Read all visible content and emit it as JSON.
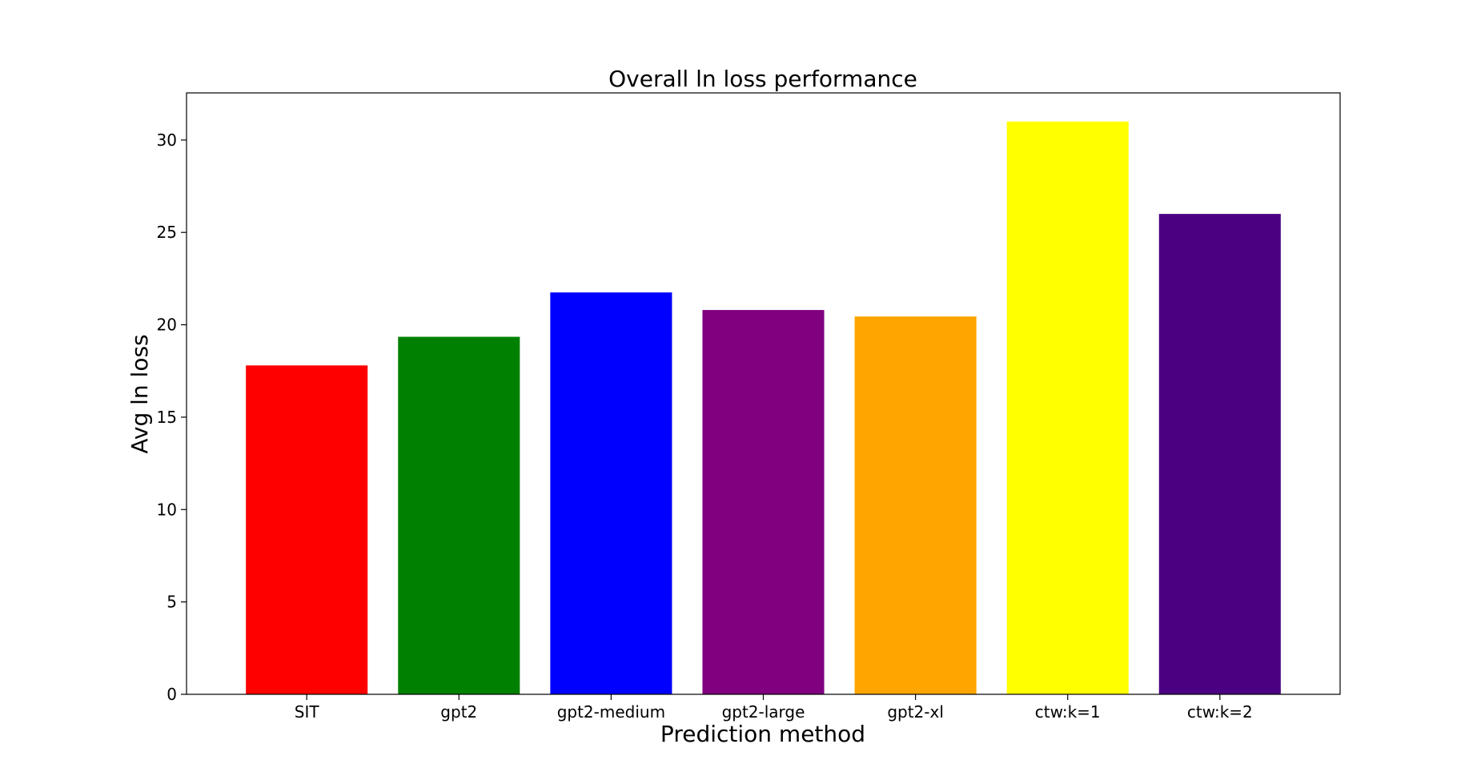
{
  "chart_data": {
    "type": "bar",
    "title": "Overall ln loss performance",
    "xlabel": "Prediction method",
    "ylabel": "Avg ln loss",
    "categories": [
      "SIT",
      "gpt2",
      "gpt2-medium",
      "gpt2-large",
      "gpt2-xl",
      "ctw:k=1",
      "ctw:k=2"
    ],
    "values": [
      17.8,
      19.35,
      21.75,
      20.8,
      20.45,
      31.0,
      26.0
    ],
    "colors": [
      "#ff0000",
      "#008000",
      "#0000ff",
      "#800080",
      "#ffa500",
      "#ffff00",
      "#4b0082"
    ],
    "ylim": [
      0,
      32.55
    ],
    "yticks": [
      0,
      5,
      10,
      15,
      20,
      25,
      30
    ],
    "grid": false,
    "legend": "none"
  }
}
